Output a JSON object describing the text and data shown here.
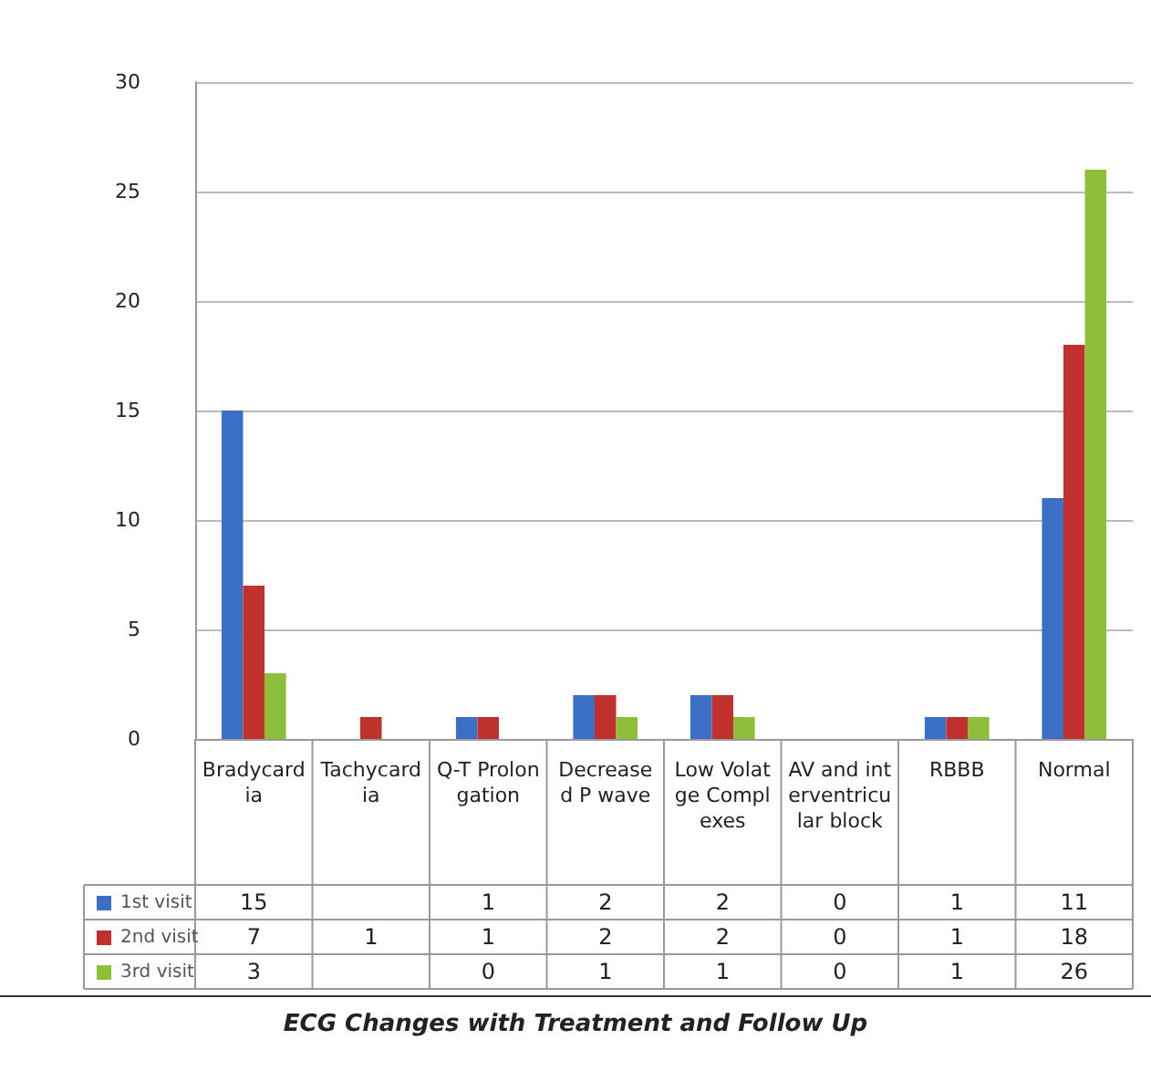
{
  "chart_data": {
    "type": "bar",
    "title": "ECG Changes with Treatment and Follow Up",
    "categories": [
      "Bradycardia",
      "Tachycardia",
      "Q-T Prolongation",
      "Decreased P wave",
      "Low Volatge Complexes",
      "AV and interventricular block",
      "RBBB",
      "Normal"
    ],
    "series": [
      {
        "name": "1st visit",
        "color": "#3b6fc6",
        "values": [
          15,
          null,
          1,
          2,
          2,
          0,
          1,
          11
        ]
      },
      {
        "name": "2nd visit",
        "color": "#c0312d",
        "values": [
          7,
          1,
          1,
          2,
          2,
          0,
          1,
          18
        ]
      },
      {
        "name": "3rd visit",
        "color": "#8dbf3a",
        "values": [
          3,
          null,
          0,
          1,
          1,
          0,
          1,
          26
        ]
      }
    ],
    "ylim": [
      0,
      30
    ],
    "yticks": [
      0,
      5,
      10,
      15,
      20,
      25,
      30
    ],
    "grid": "y",
    "legend": "bottom left",
    "data_labels": true
  }
}
